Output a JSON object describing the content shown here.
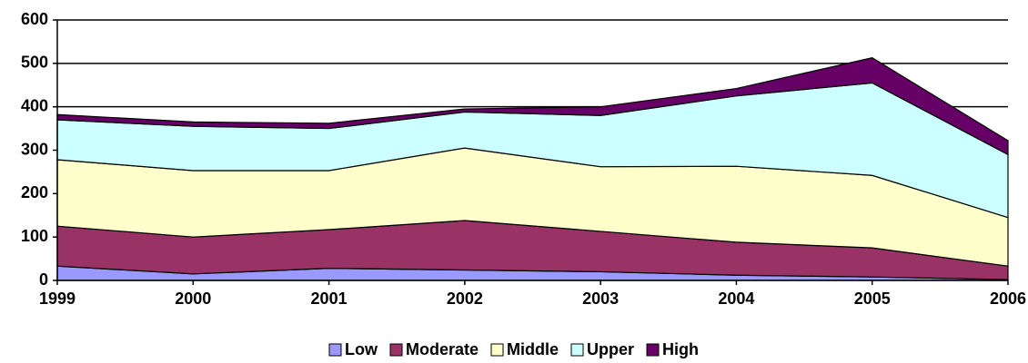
{
  "chart_data": {
    "type": "stacked_area",
    "categories": [
      "1999",
      "2000",
      "2001",
      "2002",
      "2003",
      "2004",
      "2005",
      "2006"
    ],
    "series": [
      {
        "name": "Low",
        "color": "#9999ff",
        "values": [
          33,
          15,
          28,
          24,
          20,
          12,
          8,
          2
        ]
      },
      {
        "name": "Moderate",
        "color": "#993366",
        "values": [
          92,
          85,
          89,
          114,
          93,
          76,
          67,
          31
        ]
      },
      {
        "name": "Middle",
        "color": "#ffffcc",
        "values": [
          153,
          153,
          136,
          167,
          149,
          175,
          167,
          112
        ]
      },
      {
        "name": "Upper",
        "color": "#ccffff",
        "values": [
          92,
          102,
          97,
          83,
          118,
          162,
          213,
          145
        ]
      },
      {
        "name": "High",
        "color": "#660066",
        "values": [
          12,
          10,
          12,
          7,
          20,
          17,
          58,
          32
        ]
      }
    ],
    "ylim": [
      0,
      600
    ],
    "yticks": [
      0,
      100,
      200,
      300,
      400,
      500,
      600
    ],
    "grid": true,
    "legend": "bottom"
  }
}
